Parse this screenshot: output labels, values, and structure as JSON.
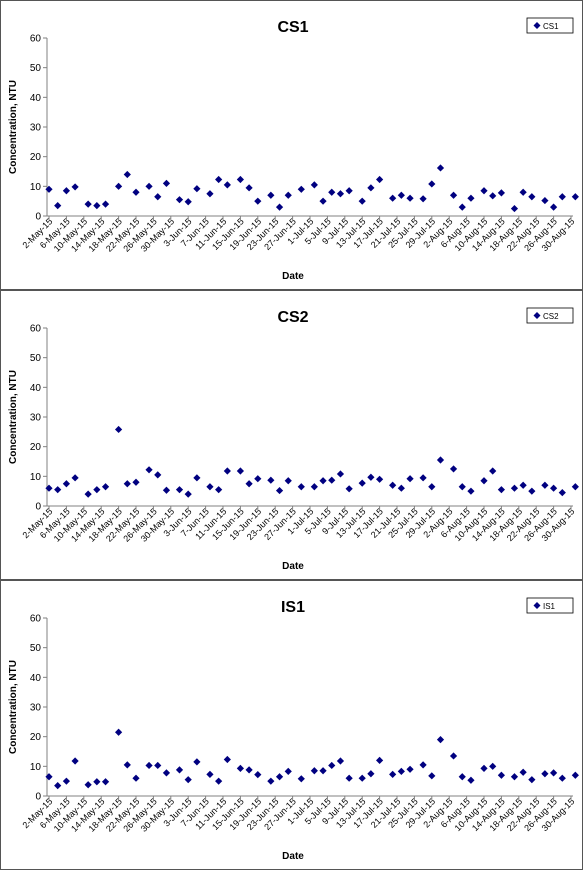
{
  "colors": {
    "marker": "#000080",
    "axis": "#808080",
    "border": "#555555"
  },
  "categories": [
    "2-May-15",
    "6-May-15",
    "10-May-15",
    "14-May-15",
    "18-May-15",
    "22-May-15",
    "26-May-15",
    "30-May-15",
    "3-Jun-15",
    "7-Jun-15",
    "11-Jun-15",
    "15-Jun-15",
    "19-Jun-15",
    "23-Jun-15",
    "27-Jun-15",
    "1-Jul-15",
    "5-Jul-15",
    "9-Jul-15",
    "13-Jul-15",
    "17-Jul-15",
    "21-Jul-15",
    "25-Jul-15",
    "29-Jul-15",
    "2-Aug-15",
    "6-Aug-15",
    "10-Aug-15",
    "14-Aug-15",
    "18-Aug-15",
    "22-Aug-15",
    "26-Aug-15",
    "30-Aug-15"
  ],
  "chart_data": [
    {
      "type": "scatter",
      "title": "CS1",
      "xlabel": "Date",
      "ylabel": "Concentration, NTU",
      "ylim": [
        0,
        60
      ],
      "yticks": [
        0,
        10,
        20,
        30,
        40,
        50,
        60
      ],
      "grid": false,
      "legend": "top-right",
      "series": [
        {
          "name": "CS1",
          "points": [
            [
              "2-May-15",
              9
            ],
            [
              "4-May-15",
              3.5
            ],
            [
              "6-May-15",
              8.5
            ],
            [
              "8-May-15",
              9.8
            ],
            [
              "11-May-15",
              4
            ],
            [
              "13-May-15",
              3.5
            ],
            [
              "15-May-15",
              4
            ],
            [
              "18-May-15",
              10
            ],
            [
              "20-May-15",
              14
            ],
            [
              "22-May-15",
              8
            ],
            [
              "25-May-15",
              10
            ],
            [
              "27-May-15",
              6.5
            ],
            [
              "29-May-15",
              11
            ],
            [
              "1-Jun-15",
              5.5
            ],
            [
              "3-Jun-15",
              4.8
            ],
            [
              "5-Jun-15",
              9.2
            ],
            [
              "8-Jun-15",
              7.5
            ],
            [
              "10-Jun-15",
              12.3
            ],
            [
              "12-Jun-15",
              10.5
            ],
            [
              "15-Jun-15",
              12.3
            ],
            [
              "17-Jun-15",
              9.5
            ],
            [
              "19-Jun-15",
              5
            ],
            [
              "22-Jun-15",
              7
            ],
            [
              "24-Jun-15",
              3
            ],
            [
              "26-Jun-15",
              7
            ],
            [
              "29-Jun-15",
              9
            ],
            [
              "2-Jul-15",
              10.5
            ],
            [
              "4-Jul-15",
              5
            ],
            [
              "6-Jul-15",
              8
            ],
            [
              "8-Jul-15",
              7.5
            ],
            [
              "10-Jul-15",
              8.5
            ],
            [
              "13-Jul-15",
              5
            ],
            [
              "15-Jul-15",
              9.5
            ],
            [
              "17-Jul-15",
              12.3
            ],
            [
              "20-Jul-15",
              6
            ],
            [
              "22-Jul-15",
              7
            ],
            [
              "24-Jul-15",
              6
            ],
            [
              "27-Jul-15",
              5.8
            ],
            [
              "29-Jul-15",
              10.8
            ],
            [
              "31-Jul-15",
              16.2
            ],
            [
              "3-Aug-15",
              7
            ],
            [
              "5-Aug-15",
              3
            ],
            [
              "7-Aug-15",
              6
            ],
            [
              "10-Aug-15",
              8.5
            ],
            [
              "12-Aug-15",
              6.8
            ],
            [
              "14-Aug-15",
              7.8
            ],
            [
              "17-Aug-15",
              2.5
            ],
            [
              "19-Aug-15",
              8
            ],
            [
              "21-Aug-15",
              6.5
            ],
            [
              "24-Aug-15",
              5.2
            ],
            [
              "26-Aug-15",
              3
            ],
            [
              "28-Aug-15",
              6.5
            ],
            [
              "31-Aug-15",
              6.5
            ]
          ]
        }
      ]
    },
    {
      "type": "scatter",
      "title": "CS2",
      "xlabel": "Date",
      "ylabel": "Concentration, NTU",
      "ylim": [
        0,
        60
      ],
      "yticks": [
        0,
        10,
        20,
        30,
        40,
        50,
        60
      ],
      "grid": false,
      "legend": "top-right",
      "series": [
        {
          "name": "CS2",
          "points": [
            [
              "2-May-15",
              6
            ],
            [
              "4-May-15",
              5.5
            ],
            [
              "6-May-15",
              7.5
            ],
            [
              "8-May-15",
              9.5
            ],
            [
              "11-May-15",
              4
            ],
            [
              "13-May-15",
              5.5
            ],
            [
              "15-May-15",
              6.5
            ],
            [
              "18-May-15",
              25.8
            ],
            [
              "20-May-15",
              7.5
            ],
            [
              "22-May-15",
              8
            ],
            [
              "25-May-15",
              12.2
            ],
            [
              "27-May-15",
              10.5
            ],
            [
              "29-May-15",
              5.3
            ],
            [
              "1-Jun-15",
              5.5
            ],
            [
              "3-Jun-15",
              4
            ],
            [
              "5-Jun-15",
              9.5
            ],
            [
              "8-Jun-15",
              6.5
            ],
            [
              "10-Jun-15",
              5.5
            ],
            [
              "12-Jun-15",
              11.8
            ],
            [
              "15-Jun-15",
              11.8
            ],
            [
              "17-Jun-15",
              7.5
            ],
            [
              "19-Jun-15",
              9.2
            ],
            [
              "22-Jun-15",
              8.7
            ],
            [
              "24-Jun-15",
              5.2
            ],
            [
              "26-Jun-15",
              8.5
            ],
            [
              "29-Jun-15",
              6.5
            ],
            [
              "2-Jul-15",
              6.5
            ],
            [
              "4-Jul-15",
              8.5
            ],
            [
              "6-Jul-15",
              8.7
            ],
            [
              "8-Jul-15",
              10.8
            ],
            [
              "10-Jul-15",
              5.8
            ],
            [
              "13-Jul-15",
              7.7
            ],
            [
              "15-Jul-15",
              9.7
            ],
            [
              "17-Jul-15",
              9
            ],
            [
              "20-Jul-15",
              7
            ],
            [
              "22-Jul-15",
              6
            ],
            [
              "24-Jul-15",
              9.2
            ],
            [
              "27-Jul-15",
              9.5
            ],
            [
              "29-Jul-15",
              6.5
            ],
            [
              "31-Jul-15",
              15.5
            ],
            [
              "3-Aug-15",
              12.5
            ],
            [
              "5-Aug-15",
              6.5
            ],
            [
              "7-Aug-15",
              5
            ],
            [
              "10-Aug-15",
              8.5
            ],
            [
              "12-Aug-15",
              11.8
            ],
            [
              "14-Aug-15",
              5.5
            ],
            [
              "17-Aug-15",
              6
            ],
            [
              "19-Aug-15",
              7
            ],
            [
              "21-Aug-15",
              5
            ],
            [
              "24-Aug-15",
              7
            ],
            [
              "26-Aug-15",
              6
            ],
            [
              "28-Aug-15",
              4.5
            ],
            [
              "31-Aug-15",
              6.5
            ]
          ]
        }
      ]
    },
    {
      "type": "scatter",
      "title": "IS1",
      "xlabel": "Date",
      "ylabel": "Concentration, NTU",
      "ylim": [
        0,
        60
      ],
      "yticks": [
        0,
        10,
        20,
        30,
        40,
        50,
        60
      ],
      "grid": false,
      "legend": "top-right",
      "series": [
        {
          "name": "IS1",
          "points": [
            [
              "2-May-15",
              6.5
            ],
            [
              "4-May-15",
              3.5
            ],
            [
              "6-May-15",
              5
            ],
            [
              "8-May-15",
              11.8
            ],
            [
              "11-May-15",
              3.8
            ],
            [
              "13-May-15",
              4.8
            ],
            [
              "15-May-15",
              4.8
            ],
            [
              "18-May-15",
              21.5
            ],
            [
              "20-May-15",
              10.5
            ],
            [
              "22-May-15",
              6
            ],
            [
              "25-May-15",
              10.3
            ],
            [
              "27-May-15",
              10.3
            ],
            [
              "29-May-15",
              7.8
            ],
            [
              "1-Jun-15",
              8.8
            ],
            [
              "3-Jun-15",
              5.5
            ],
            [
              "5-Jun-15",
              11.5
            ],
            [
              "8-Jun-15",
              7.3
            ],
            [
              "10-Jun-15",
              5
            ],
            [
              "12-Jun-15",
              12.3
            ],
            [
              "15-Jun-15",
              9.3
            ],
            [
              "17-Jun-15",
              8.8
            ],
            [
              "19-Jun-15",
              7.2
            ],
            [
              "22-Jun-15",
              5
            ],
            [
              "24-Jun-15",
              6.5
            ],
            [
              "26-Jun-15",
              8.3
            ],
            [
              "29-Jun-15",
              5.8
            ],
            [
              "2-Jul-15",
              8.5
            ],
            [
              "4-Jul-15",
              8.5
            ],
            [
              "6-Jul-15",
              10.3
            ],
            [
              "8-Jul-15",
              11.8
            ],
            [
              "10-Jul-15",
              6
            ],
            [
              "13-Jul-15",
              6
            ],
            [
              "15-Jul-15",
              7.5
            ],
            [
              "17-Jul-15",
              12
            ],
            [
              "20-Jul-15",
              7.3
            ],
            [
              "22-Jul-15",
              8.3
            ],
            [
              "24-Jul-15",
              9
            ],
            [
              "27-Jul-15",
              10.5
            ],
            [
              "29-Jul-15",
              6.8
            ],
            [
              "31-Jul-15",
              19
            ],
            [
              "3-Aug-15",
              13.5
            ],
            [
              "5-Aug-15",
              6.5
            ],
            [
              "7-Aug-15",
              5.3
            ],
            [
              "10-Aug-15",
              9.3
            ],
            [
              "12-Aug-15",
              10
            ],
            [
              "14-Aug-15",
              7
            ],
            [
              "17-Aug-15",
              6.5
            ],
            [
              "19-Aug-15",
              8
            ],
            [
              "21-Aug-15",
              5.5
            ],
            [
              "24-Aug-15",
              7.5
            ],
            [
              "26-Aug-15",
              7.8
            ],
            [
              "28-Aug-15",
              6
            ],
            [
              "31-Aug-15",
              7
            ]
          ]
        }
      ]
    }
  ]
}
